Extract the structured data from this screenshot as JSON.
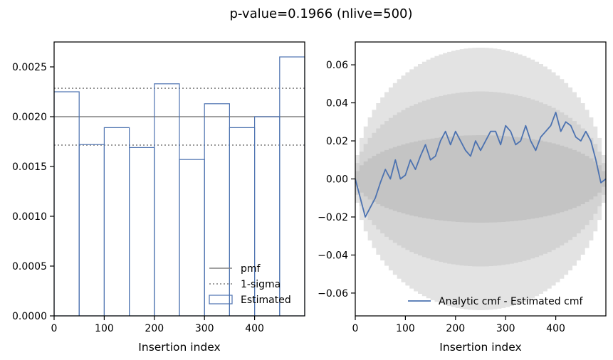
{
  "figure": {
    "title": "p-value=0.1966 (nlive=500)"
  },
  "chart_data": [
    {
      "type": "step",
      "name": "insertion-index-histogram",
      "xlabel": "Insertion index",
      "ylabel": "",
      "xlim": [
        0,
        500
      ],
      "ylim": [
        0,
        0.00275
      ],
      "xticks": [
        0,
        100,
        200,
        300,
        400
      ],
      "xtick_labels": [
        "0",
        "100",
        "200",
        "300",
        "400"
      ],
      "yticks": [
        0,
        0.0005,
        0.001,
        0.0015,
        0.002,
        0.0025
      ],
      "ytick_labels": [
        "0.0000",
        "0.0005",
        "0.0010",
        "0.0015",
        "0.0020",
        "0.0025"
      ],
      "pmf": {
        "label": "pmf",
        "value": 0.002,
        "color": "#808080"
      },
      "sigma": {
        "label": "1-sigma",
        "lower": 0.001715,
        "upper": 0.002285,
        "color": "#808080"
      },
      "estimated": {
        "label": "Estimated",
        "color": "#4c72b0",
        "bin_edges": [
          0,
          50,
          100,
          150,
          200,
          250,
          300,
          350,
          400,
          450,
          500
        ],
        "values": [
          0.00225,
          0.00172,
          0.00189,
          0.00169,
          0.00233,
          0.00157,
          0.00213,
          0.00189,
          0.002,
          0.0026
        ]
      },
      "legend": [
        "pmf",
        "1-sigma",
        "Estimated"
      ],
      "legend_position": "lower-right"
    },
    {
      "type": "line",
      "name": "cmf-difference",
      "xlabel": "Insertion index",
      "ylabel": "",
      "xlim": [
        0,
        500
      ],
      "ylim": [
        -0.072,
        0.072
      ],
      "xticks": [
        0,
        100,
        200,
        300,
        400
      ],
      "xtick_labels": [
        "0",
        "100",
        "200",
        "300",
        "400"
      ],
      "yticks": [
        -0.06,
        -0.04,
        -0.02,
        0.0,
        0.02,
        0.04,
        0.06
      ],
      "ytick_labels": [
        "−0.06",
        "−0.04",
        "−0.02",
        "0.00",
        "0.02",
        "0.04",
        "0.06"
      ],
      "bands": [
        {
          "sigma": 3,
          "amplitude": 0.069,
          "color": "#e3e3e3"
        },
        {
          "sigma": 2,
          "amplitude": 0.046,
          "color": "#d3d3d3"
        },
        {
          "sigma": 1,
          "amplitude": 0.023,
          "color": "#c4c4c4"
        }
      ],
      "series": {
        "name": "Analytic cmf - Estimated cmf",
        "color": "#4c72b0",
        "x": [
          0,
          10,
          20,
          30,
          40,
          50,
          60,
          70,
          80,
          90,
          100,
          110,
          120,
          130,
          140,
          150,
          160,
          170,
          180,
          190,
          200,
          210,
          220,
          230,
          240,
          250,
          260,
          270,
          280,
          290,
          300,
          310,
          320,
          330,
          340,
          350,
          360,
          370,
          380,
          390,
          400,
          410,
          420,
          430,
          440,
          450,
          460,
          470,
          480,
          490,
          500
        ],
        "values": [
          0.0,
          -0.01,
          -0.02,
          -0.015,
          -0.01,
          -0.002,
          0.005,
          0.0,
          0.01,
          0.0,
          0.002,
          0.01,
          0.005,
          0.012,
          0.018,
          0.01,
          0.012,
          0.02,
          0.025,
          0.018,
          0.025,
          0.02,
          0.015,
          0.012,
          0.02,
          0.015,
          0.02,
          0.025,
          0.025,
          0.018,
          0.028,
          0.025,
          0.018,
          0.02,
          0.028,
          0.02,
          0.015,
          0.022,
          0.025,
          0.028,
          0.035,
          0.025,
          0.03,
          0.028,
          0.022,
          0.02,
          0.025,
          0.02,
          0.01,
          -0.002,
          0.0
        ]
      },
      "legend": [
        "Analytic cmf - Estimated cmf"
      ],
      "legend_position": "lower-right"
    }
  ]
}
